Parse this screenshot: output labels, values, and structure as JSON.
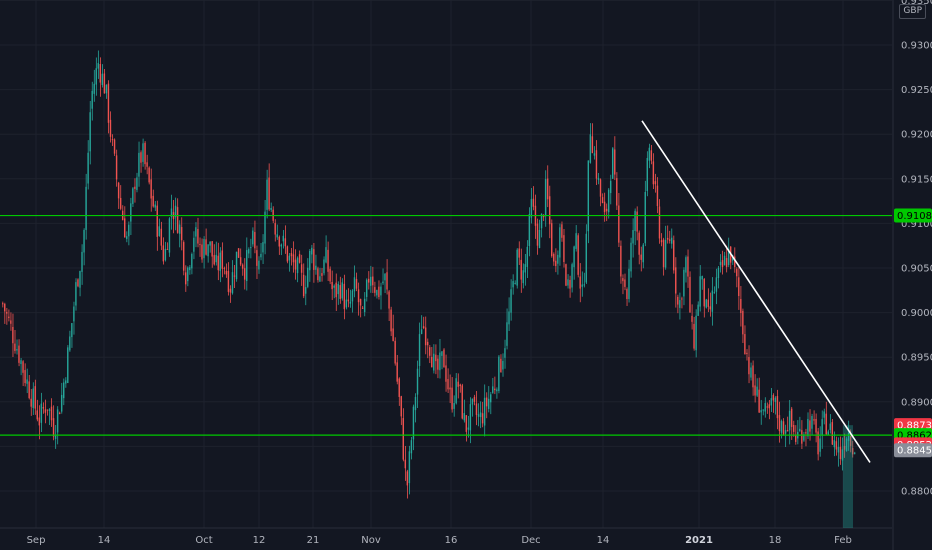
{
  "chart_data": {
    "type": "candlestick",
    "title": "",
    "currency": "GBP",
    "ylim": [
      0.8764,
      0.9355
    ],
    "grid": true,
    "y_ticks": [
      "0.88000",
      "0.88500",
      "0.89000",
      "0.89500",
      "0.90000",
      "0.90500",
      "0.91000",
      "0.91500",
      "0.92000",
      "0.92500",
      "0.93000",
      "0.93500"
    ],
    "x_ticks": [
      {
        "label": "Sep",
        "bold": false
      },
      {
        "label": "14",
        "bold": false
      },
      {
        "label": "Oct",
        "bold": false
      },
      {
        "label": "12",
        "bold": false
      },
      {
        "label": "21",
        "bold": false
      },
      {
        "label": "Nov",
        "bold": false
      },
      {
        "label": "16",
        "bold": false
      },
      {
        "label": "Dec",
        "bold": false
      },
      {
        "label": "14",
        "bold": false
      },
      {
        "label": "2021",
        "bold": true
      },
      {
        "label": "18",
        "bold": false
      },
      {
        "label": "Feb",
        "bold": false
      }
    ],
    "price_path": [
      0.901,
      0.8985,
      0.896,
      0.893,
      0.8905,
      0.888,
      0.89,
      0.887,
      0.8905,
      0.896,
      0.903,
      0.908,
      0.924,
      0.928,
      0.925,
      0.918,
      0.912,
      0.908,
      0.915,
      0.918,
      0.914,
      0.91,
      0.906,
      0.912,
      0.91,
      0.904,
      0.909,
      0.907,
      0.908,
      0.905,
      0.906,
      0.903,
      0.907,
      0.905,
      0.908,
      0.904,
      0.914,
      0.91,
      0.908,
      0.906,
      0.905,
      0.903,
      0.907,
      0.904,
      0.906,
      0.902,
      0.903,
      0.9,
      0.903,
      0.899,
      0.905,
      0.902,
      0.904,
      0.898,
      0.89,
      0.88,
      0.889,
      0.899,
      0.897,
      0.893,
      0.895,
      0.89,
      0.892,
      0.887,
      0.889,
      0.888,
      0.89,
      0.892,
      0.895,
      0.9,
      0.906,
      0.904,
      0.912,
      0.908,
      0.914,
      0.905,
      0.91,
      0.902,
      0.908,
      0.901,
      0.921,
      0.915,
      0.91,
      0.918,
      0.906,
      0.902,
      0.911,
      0.906,
      0.919,
      0.912,
      0.906,
      0.909,
      0.9,
      0.906,
      0.896,
      0.904,
      0.899,
      0.903,
      0.905,
      0.907,
      0.903,
      0.897,
      0.892,
      0.89,
      0.888,
      0.89,
      0.887,
      0.888,
      0.886,
      0.887,
      0.888,
      0.885,
      0.888,
      0.886,
      0.884,
      0.887,
      0.885
    ],
    "horizontal_levels": [
      {
        "value": 0.91088,
        "label": "0.91088",
        "color": "#00c800"
      },
      {
        "value": 0.88626,
        "label": "0.88626",
        "color": "#00c800"
      }
    ],
    "trendline": {
      "start": {
        "value": 0.9215,
        "label": "Dec 14–21"
      },
      "end": {
        "value": 0.8832,
        "label": "Feb"
      },
      "color": "#ffffff"
    },
    "price_tags": [
      {
        "value": 0.88738,
        "label": "0.88738",
        "color": "#f23645",
        "text_color": "#ffffff"
      },
      {
        "value": 0.88626,
        "label": "0.88626",
        "color": "#00c800",
        "text_color": "#000000"
      },
      {
        "value": 0.88523,
        "label": "0.88523",
        "color": "#f23645",
        "text_color": "#ffffff"
      },
      {
        "value": 0.88457,
        "label": "0.88457",
        "color": "#8a8e99",
        "text_color": "#ffffff"
      }
    ],
    "colors": {
      "up": "#26a69a",
      "down": "#ef5350",
      "background": "#131722",
      "grid": "#1e222d",
      "axis_text": "#b2b5be"
    }
  }
}
